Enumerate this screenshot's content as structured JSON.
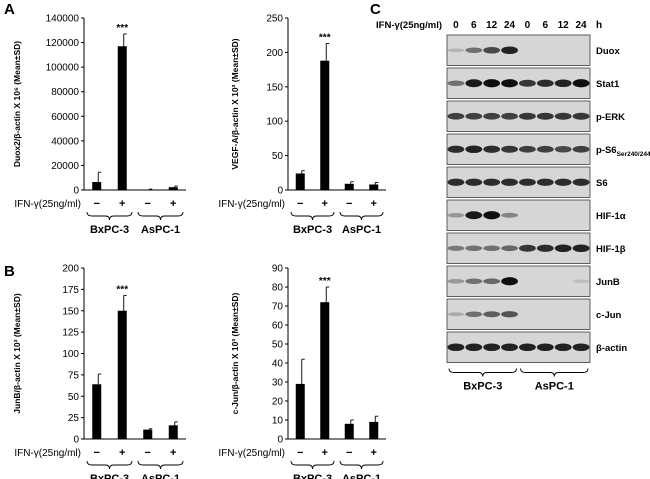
{
  "panel_labels": {
    "a": "A",
    "b": "B",
    "c": "C"
  },
  "treatment_label": "IFN-γ(25ng/ml)",
  "minus_sign": "−",
  "plus_sign": "+",
  "significance": "***",
  "cell_lines": [
    "BxPC-3",
    "AsPC-1"
  ],
  "chart_data": [
    {
      "panel": "A",
      "type": "bar",
      "ylabel": "Duox2/β-actin X 10⁶ (Mean±SD)",
      "ylim": [
        0,
        140000
      ],
      "yticks": [
        "0",
        "20000",
        "40000",
        "60000",
        "80000",
        "100000",
        "120000",
        "140000"
      ],
      "categories": [
        "BxPC-3 −",
        "BxPC-3 +",
        "AsPC-1 −",
        "AsPC-1 +"
      ],
      "values": [
        6500,
        117000,
        400,
        2300
      ],
      "errors": [
        8000,
        10000,
        300,
        900
      ],
      "annotation": "***",
      "annotated_index": 1
    },
    {
      "panel": "A",
      "type": "bar",
      "ylabel": "VEGF-A/β-actin X 10³ (Mean±SD)",
      "ylim": [
        0,
        250
      ],
      "yticks": [
        "0",
        "50",
        "100",
        "150",
        "200",
        "250"
      ],
      "categories": [
        "BxPC-3 −",
        "BxPC-3 +",
        "AsPC-1 −",
        "AsPC-1 +"
      ],
      "values": [
        24,
        188,
        9,
        8
      ],
      "errors": [
        4,
        25,
        3,
        3
      ],
      "annotation": "***",
      "annotated_index": 1
    },
    {
      "panel": "B",
      "type": "bar",
      "ylabel": "JunB/β-actin X 10³ (Mean±SD)",
      "ylim": [
        0,
        200
      ],
      "yticks": [
        "0",
        "25",
        "50",
        "75",
        "100",
        "125",
        "150",
        "175",
        "200"
      ],
      "categories": [
        "BxPC-3 −",
        "BxPC-3 +",
        "AsPC-1 −",
        "AsPC-1 +"
      ],
      "values": [
        64,
        150,
        11,
        16
      ],
      "errors": [
        12,
        18,
        1,
        4
      ],
      "annotation": "***",
      "annotated_index": 1
    },
    {
      "panel": "B",
      "type": "bar",
      "ylabel": "c-Jun/β-actin X 10³ (Mean±SD)",
      "ylim": [
        0,
        90
      ],
      "yticks": [
        "0",
        "10",
        "20",
        "30",
        "40",
        "50",
        "60",
        "70",
        "80",
        "90"
      ],
      "categories": [
        "BxPC-3 −",
        "BxPC-3 +",
        "AsPC-1 −",
        "AsPC-1 +"
      ],
      "values": [
        29,
        72,
        8,
        9
      ],
      "errors": [
        13,
        8,
        2,
        3
      ],
      "annotation": "***",
      "annotated_index": 1
    }
  ],
  "blot": {
    "time_points": [
      "0",
      "6",
      "12",
      "24",
      "0",
      "6",
      "12",
      "24"
    ],
    "time_unit": "h",
    "rows": [
      {
        "label": "Duox",
        "intensity": [
          0.1,
          0.45,
          0.65,
          0.85,
          0.0,
          0.0,
          0.0,
          0.0
        ]
      },
      {
        "label": "Stat1",
        "intensity": [
          0.45,
          0.9,
          0.95,
          0.95,
          0.75,
          0.8,
          0.85,
          0.95
        ]
      },
      {
        "label": "p-ERK",
        "intensity": [
          0.7,
          0.7,
          0.7,
          0.7,
          0.75,
          0.75,
          0.75,
          0.75
        ]
      },
      {
        "label": "p-S6",
        "sub": "Ser240/244",
        "intensity": [
          0.8,
          0.85,
          0.8,
          0.75,
          0.7,
          0.7,
          0.65,
          0.7
        ]
      },
      {
        "label": "S6",
        "intensity": [
          0.8,
          0.8,
          0.8,
          0.8,
          0.8,
          0.8,
          0.8,
          0.8
        ]
      },
      {
        "label": "HIF-1α",
        "intensity": [
          0.25,
          0.9,
          0.95,
          0.35,
          0.0,
          0.0,
          0.0,
          0.0
        ]
      },
      {
        "label": "HIF-1β",
        "intensity": [
          0.4,
          0.45,
          0.45,
          0.5,
          0.75,
          0.8,
          0.85,
          0.85
        ]
      },
      {
        "label": "JunB",
        "intensity": [
          0.25,
          0.45,
          0.5,
          0.95,
          0.0,
          0.0,
          0.0,
          0.05
        ]
      },
      {
        "label": "c-Jun",
        "intensity": [
          0.15,
          0.45,
          0.55,
          0.6,
          0.0,
          0.0,
          0.0,
          0.0
        ]
      },
      {
        "label": "β-actin",
        "intensity": [
          0.85,
          0.85,
          0.85,
          0.85,
          0.85,
          0.85,
          0.85,
          0.85
        ]
      }
    ]
  }
}
